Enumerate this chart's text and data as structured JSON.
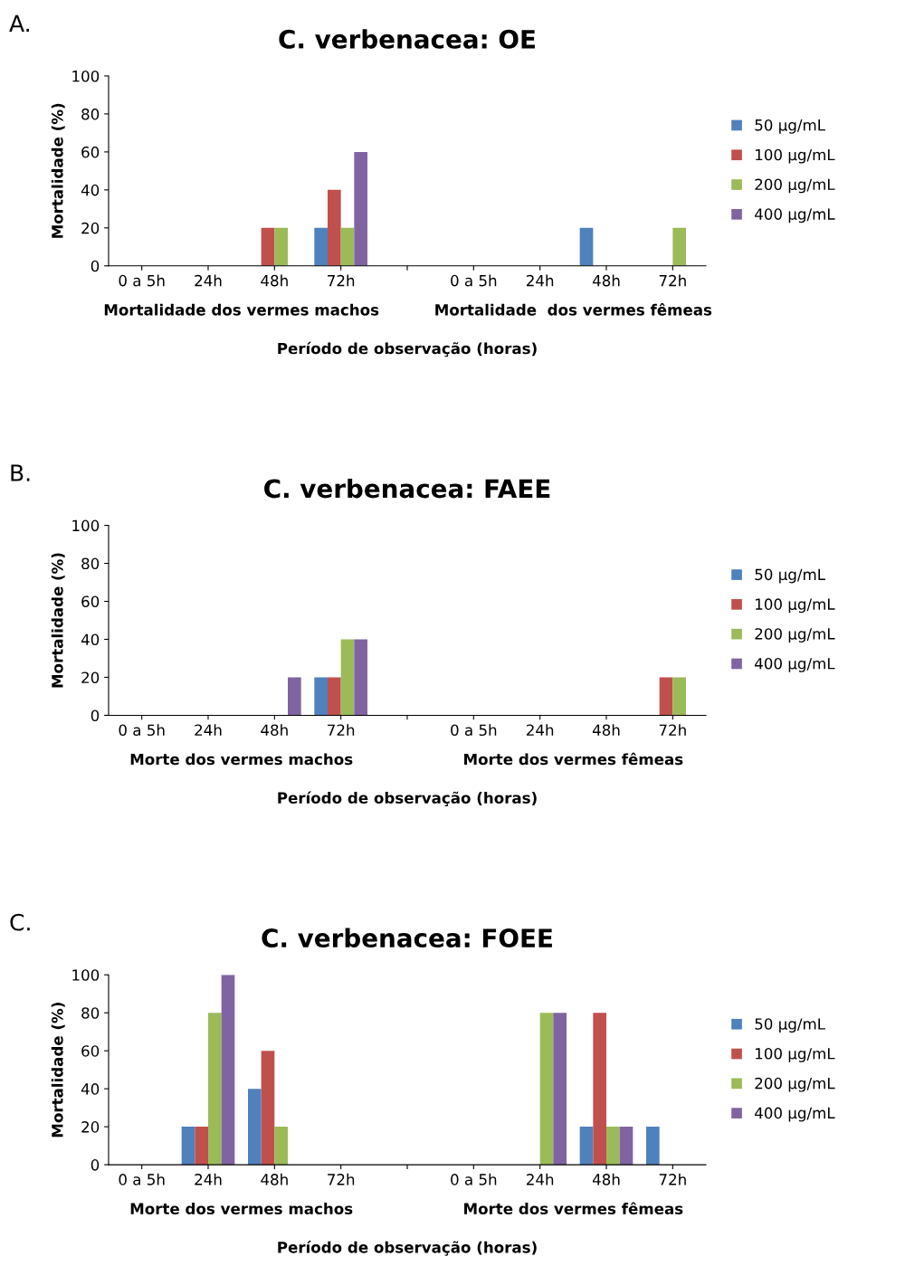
{
  "chart_data": [
    {
      "type": "bar",
      "title": "C. verbenacea: OE",
      "xlabel": "Período de observação (horas)",
      "ylabel": "Mortalidade (%)",
      "categories": [
        "0 a 5h",
        "24h",
        "48h",
        "72h",
        null,
        "0 a 5h",
        "24h",
        "48h",
        "72h"
      ],
      "series": [
        {
          "name": "50 µg/mL",
          "color": "#4f81bd",
          "values": [
            0,
            0,
            0,
            20,
            null,
            0,
            0,
            20,
            0
          ]
        },
        {
          "name": "100 µg/mL",
          "color": "#c0504d",
          "values": [
            0,
            0,
            20,
            40,
            null,
            0,
            0,
            0,
            0
          ]
        },
        {
          "name": "200 µg/mL",
          "color": "#9bbb59",
          "values": [
            0,
            0,
            20,
            20,
            null,
            0,
            0,
            0,
            20
          ]
        },
        {
          "name": "400 µg/mL",
          "color": "#8064a2",
          "values": [
            0,
            0,
            0,
            60,
            null,
            0,
            0,
            0,
            0
          ]
        }
      ],
      "ylim": [
        0,
        100
      ],
      "yticks": [
        0,
        20,
        40,
        60,
        80,
        100
      ],
      "grid": false,
      "legend": "right",
      "annotations": [
        "A.",
        "Mortalidade dos vermes machos",
        "Mortalidade  dos vermes fêmeas"
      ]
    },
    {
      "type": "bar",
      "title": "C. verbenacea: FAEE",
      "xlabel": "Período de observação (horas)",
      "ylabel": "Mortalidade (%)",
      "categories": [
        "0 a 5h",
        "24h",
        "48h",
        "72h",
        null,
        "0 a 5h",
        "24h",
        "48h",
        "72h"
      ],
      "series": [
        {
          "name": "50 µg/mL",
          "color": "#4f81bd",
          "values": [
            0,
            0,
            0,
            20,
            null,
            0,
            0,
            0,
            0
          ]
        },
        {
          "name": "100 µg/mL",
          "color": "#c0504d",
          "values": [
            0,
            0,
            0,
            20,
            null,
            0,
            0,
            0,
            20
          ]
        },
        {
          "name": "200 µg/mL",
          "color": "#9bbb59",
          "values": [
            0,
            0,
            0,
            40,
            null,
            0,
            0,
            0,
            20
          ]
        },
        {
          "name": "400 µg/mL",
          "color": "#8064a2",
          "values": [
            0,
            0,
            20,
            40,
            null,
            0,
            0,
            0,
            0
          ]
        }
      ],
      "ylim": [
        0,
        100
      ],
      "yticks": [
        0,
        20,
        40,
        60,
        80,
        100
      ],
      "grid": false,
      "legend": "right",
      "annotations": [
        "B.",
        "Morte dos vermes machos",
        "Morte dos vermes fêmeas"
      ]
    },
    {
      "type": "bar",
      "title": "C. verbenacea: FOEE",
      "xlabel": "Período de observação (horas)",
      "ylabel": "Mortalidade (%)",
      "categories": [
        "0 a 5h",
        "24h",
        "48h",
        "72h",
        null,
        "0 a 5h",
        "24h",
        "48h",
        "72h"
      ],
      "series": [
        {
          "name": "50 µg/mL",
          "color": "#4f81bd",
          "values": [
            0,
            20,
            40,
            null,
            null,
            0,
            0,
            20,
            20
          ]
        },
        {
          "name": "100 µg/mL",
          "color": "#c0504d",
          "values": [
            0,
            20,
            60,
            null,
            null,
            0,
            0,
            80,
            0
          ]
        },
        {
          "name": "200 µg/mL",
          "color": "#9bbb59",
          "values": [
            0,
            80,
            20,
            null,
            null,
            0,
            80,
            20,
            0
          ]
        },
        {
          "name": "400 µg/mL",
          "color": "#8064a2",
          "values": [
            0,
            100,
            0,
            null,
            null,
            0,
            80,
            20,
            0
          ]
        }
      ],
      "ylim": [
        0,
        100
      ],
      "yticks": [
        0,
        20,
        40,
        60,
        80,
        100
      ],
      "grid": false,
      "legend": "right",
      "annotations": [
        "C.",
        "Morte dos vermes machos",
        "Morte dos vermes fêmeas"
      ]
    }
  ]
}
